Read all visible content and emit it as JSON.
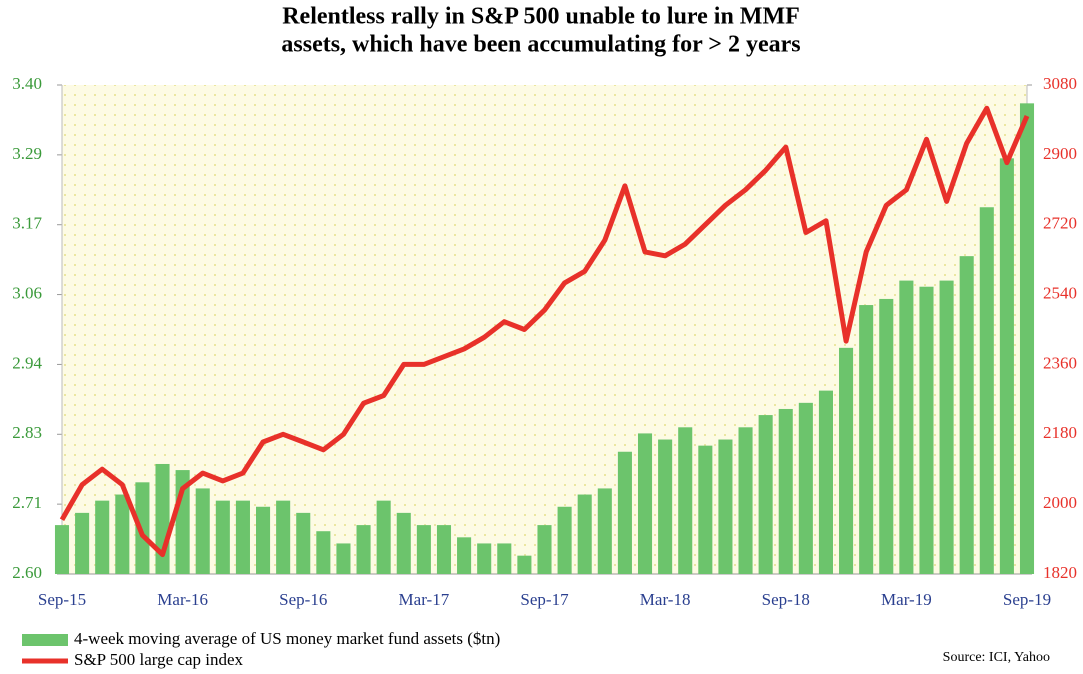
{
  "chart_data": {
    "type": "bar_line",
    "title": [
      "Relentless rally in S&P 500 unable to lure in MMF",
      "assets, which have been accumulating for > 2 years"
    ],
    "source": "Source: ICI, Yahoo",
    "categories": [
      "Sep-15",
      null,
      null,
      null,
      null,
      null,
      "Mar-16",
      null,
      null,
      null,
      null,
      null,
      "Sep-16",
      null,
      null,
      null,
      null,
      null,
      "Mar-17",
      null,
      null,
      null,
      null,
      null,
      "Sep-17",
      null,
      null,
      null,
      null,
      null,
      "Mar-18",
      null,
      null,
      null,
      null,
      null,
      "Sep-18",
      null,
      null,
      null,
      null,
      null,
      "Mar-19",
      null,
      null,
      null,
      null,
      null,
      "Sep-19"
    ],
    "series": [
      {
        "name": "4-week moving average of US money market fund assets ($tn)",
        "color": "#6cc46c",
        "kind": "bar",
        "axis": "y",
        "values": [
          2.68,
          2.7,
          2.72,
          2.73,
          2.75,
          2.78,
          2.77,
          2.74,
          2.72,
          2.72,
          2.71,
          2.72,
          2.7,
          2.67,
          2.65,
          2.68,
          2.72,
          2.7,
          2.68,
          2.68,
          2.66,
          2.65,
          2.65,
          2.63,
          2.68,
          2.71,
          2.73,
          2.74,
          2.8,
          2.83,
          2.82,
          2.84,
          2.81,
          2.82,
          2.84,
          2.86,
          2.87,
          2.88,
          2.9,
          2.97,
          3.04,
          3.05,
          3.08,
          3.07,
          3.08,
          3.12,
          3.2,
          3.28,
          3.37
        ]
      },
      {
        "name": "S&P 500 large cap index",
        "color": "#e8312a",
        "kind": "line",
        "axis": "y2",
        "values": [
          1960,
          2050,
          2090,
          2050,
          1920,
          1870,
          2040,
          2080,
          2060,
          2080,
          2160,
          2180,
          2160,
          2140,
          2180,
          2260,
          2280,
          2360,
          2360,
          2380,
          2400,
          2430,
          2470,
          2450,
          2500,
          2570,
          2600,
          2680,
          2820,
          2650,
          2640,
          2670,
          2720,
          2770,
          2810,
          2860,
          2920,
          2700,
          2730,
          2420,
          2650,
          2770,
          2810,
          2940,
          2780,
          2930,
          3020,
          2880,
          3000
        ]
      }
    ],
    "ylim": [
      2.6,
      3.4
    ],
    "yticks": [
      {
        "value": 2.6,
        "label": "2.60"
      },
      {
        "value": 2.7142857,
        "label": "2.71"
      },
      {
        "value": 2.8285714,
        "label": "2.83"
      },
      {
        "value": 2.9428571,
        "label": "2.94"
      },
      {
        "value": 3.0571429,
        "label": "3.06"
      },
      {
        "value": 3.1714286,
        "label": "3.17"
      },
      {
        "value": 3.2857143,
        "label": "3.29"
      },
      {
        "value": 3.4,
        "label": "3.40"
      }
    ],
    "y2lim": [
      1820,
      3080
    ],
    "y2ticks": [
      1820,
      2000,
      2180,
      2360,
      2540,
      2720,
      2900,
      3080
    ],
    "ytick_color": "#3a9a3a",
    "y2tick_color": "#e8312a",
    "xtick_color": "#2a3f8f",
    "grid": false
  }
}
